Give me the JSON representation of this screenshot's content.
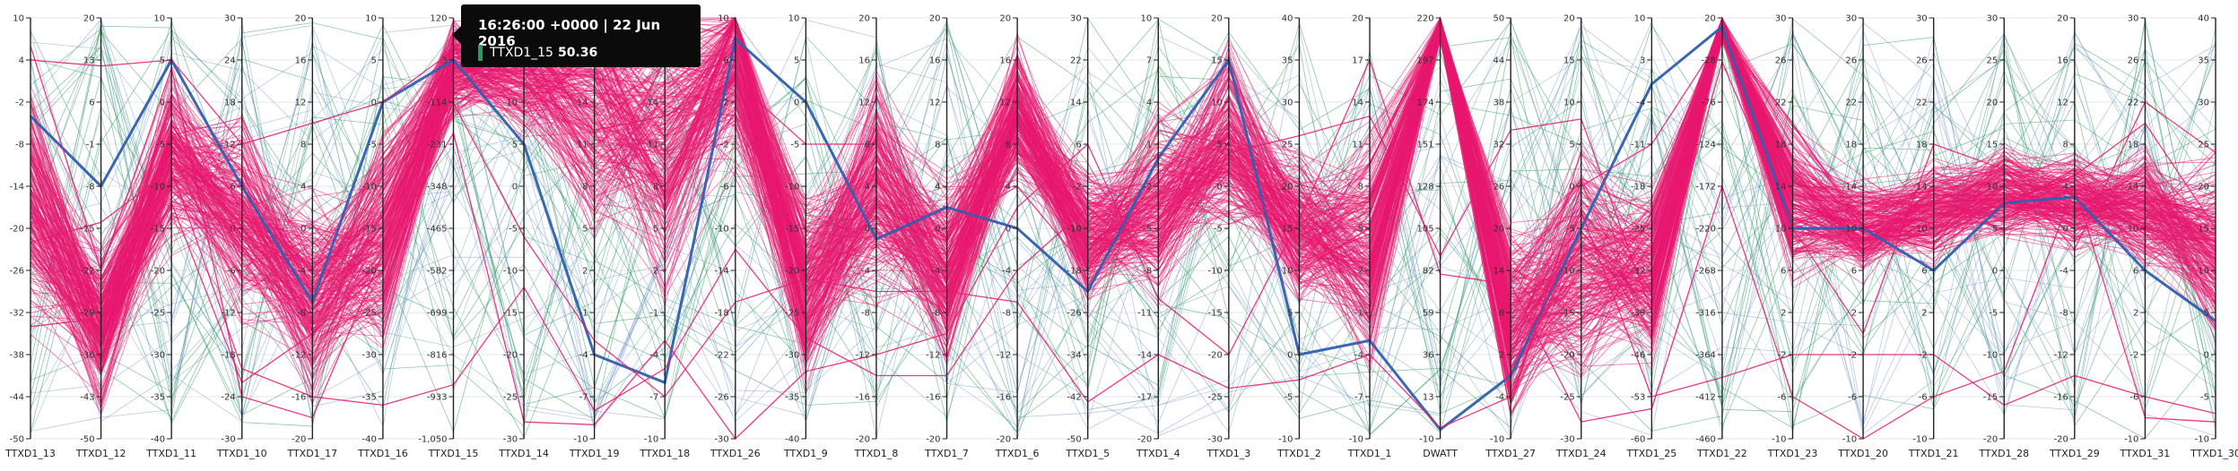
{
  "chart_data": {
    "type": "parallel-coordinates",
    "colors": {
      "highlight": "#2f5fb0",
      "primary": "#e8176f",
      "secondary": "#2e9b5e",
      "tertiary": "#7f9fd0"
    },
    "axes": [
      {
        "name": "TTXD1_13",
        "ticks": [
          "10",
          "4",
          "-2",
          "-8",
          "-14",
          "-20",
          "-26",
          "-32",
          "-38",
          "-44",
          "-50"
        ]
      },
      {
        "name": "TTXD1_12",
        "ticks": [
          "20",
          "13",
          "6",
          "-1",
          "-8",
          "-15",
          "-22",
          "-29",
          "-36",
          "-43",
          "-50"
        ]
      },
      {
        "name": "TTXD1_11",
        "ticks": [
          "10",
          "5",
          "0",
          "-5",
          "-10",
          "-15",
          "-20",
          "-25",
          "-30",
          "-35",
          "-40"
        ]
      },
      {
        "name": "TTXD1_10",
        "ticks": [
          "30",
          "24",
          "18",
          "12",
          "6",
          "0",
          "-6",
          "-12",
          "-18",
          "-24",
          "-30"
        ]
      },
      {
        "name": "TTXD1_17",
        "ticks": [
          "20",
          "16",
          "12",
          "8",
          "4",
          "0",
          "-4",
          "-8",
          "-12",
          "-16",
          "-20"
        ]
      },
      {
        "name": "TTXD1_16",
        "ticks": [
          "10",
          "5",
          "0",
          "-5",
          "-10",
          "-15",
          "-20",
          "-25",
          "-30",
          "-35",
          "-40"
        ]
      },
      {
        "name": "TTXD1_15",
        "ticks": [
          "120",
          "3",
          "-114",
          "-231",
          "-348",
          "-465",
          "-582",
          "-699",
          "-816",
          "-933",
          "-1,050"
        ]
      },
      {
        "name": "TTXD1_14",
        "ticks": [
          "20",
          "15",
          "10",
          "5",
          "0",
          "-5",
          "-10",
          "-15",
          "-20",
          "-25",
          "-30"
        ]
      },
      {
        "name": "TTXD1_19",
        "ticks": [
          "20",
          "17",
          "14",
          "11",
          "8",
          "5",
          "2",
          "-1",
          "-4",
          "-7",
          "-10"
        ]
      },
      {
        "name": "TTXD1_18",
        "ticks": [
          "20",
          "17",
          "14",
          "11",
          "8",
          "5",
          "2",
          "-1",
          "-4",
          "-7",
          "-10"
        ]
      },
      {
        "name": "TTXD1_26",
        "ticks": [
          "10",
          "6",
          "2",
          "-2",
          "-6",
          "-10",
          "-14",
          "-18",
          "-22",
          "-26",
          "-30"
        ]
      },
      {
        "name": "TTXD1_9",
        "ticks": [
          "10",
          "5",
          "0",
          "-5",
          "-10",
          "-15",
          "-20",
          "-25",
          "-30",
          "-35",
          "-40"
        ]
      },
      {
        "name": "TTXD1_8",
        "ticks": [
          "20",
          "16",
          "12",
          "8",
          "4",
          "0",
          "-4",
          "-8",
          "-12",
          "-16",
          "-20"
        ]
      },
      {
        "name": "TTXD1_7",
        "ticks": [
          "20",
          "16",
          "12",
          "8",
          "4",
          "0",
          "-4",
          "-8",
          "-12",
          "-16",
          "-20"
        ]
      },
      {
        "name": "TTXD1_6",
        "ticks": [
          "20",
          "16",
          "12",
          "8",
          "4",
          "0",
          "-4",
          "-8",
          "-12",
          "-16",
          "-20"
        ]
      },
      {
        "name": "TTXD1_5",
        "ticks": [
          "30",
          "22",
          "14",
          "6",
          "-2",
          "-10",
          "-18",
          "-26",
          "-34",
          "-42",
          "-50"
        ]
      },
      {
        "name": "TTXD1_4",
        "ticks": [
          "10",
          "7",
          "4",
          "1",
          "-2",
          "-5",
          "-8",
          "-11",
          "-14",
          "-17",
          "-20"
        ]
      },
      {
        "name": "TTXD1_3",
        "ticks": [
          "20",
          "15",
          "10",
          "5",
          "0",
          "-5",
          "-10",
          "-15",
          "-20",
          "-25",
          "-30"
        ]
      },
      {
        "name": "TTXD1_2",
        "ticks": [
          "40",
          "35",
          "30",
          "25",
          "20",
          "15",
          "10",
          "5",
          "0",
          "-5",
          "-10"
        ]
      },
      {
        "name": "TTXD1_1",
        "ticks": [
          "20",
          "17",
          "14",
          "11",
          "8",
          "5",
          "2",
          "-1",
          "-4",
          "-7",
          "-10"
        ]
      },
      {
        "name": "DWATT",
        "ticks": [
          "220",
          "197",
          "174",
          "151",
          "128",
          "105",
          "82",
          "59",
          "36",
          "13",
          "-10"
        ]
      },
      {
        "name": "TTXD1_27",
        "ticks": [
          "50",
          "44",
          "38",
          "32",
          "26",
          "20",
          "14",
          "8",
          "2",
          "-4",
          "-10"
        ]
      },
      {
        "name": "TTXD1_24",
        "ticks": [
          "20",
          "15",
          "10",
          "5",
          "0",
          "-5",
          "-10",
          "-15",
          "-20",
          "-25",
          "-30"
        ]
      },
      {
        "name": "TTXD1_25",
        "ticks": [
          "10",
          "3",
          "-4",
          "-11",
          "-18",
          "-25",
          "-32",
          "-39",
          "-46",
          "-53",
          "-60"
        ]
      },
      {
        "name": "TTXD1_22",
        "ticks": [
          "20",
          "-28",
          "-76",
          "-124",
          "-172",
          "-220",
          "-268",
          "-316",
          "-364",
          "-412",
          "-460"
        ]
      },
      {
        "name": "TTXD1_23",
        "ticks": [
          "30",
          "26",
          "22",
          "18",
          "14",
          "10",
          "6",
          "2",
          "-2",
          "-6",
          "-10"
        ]
      },
      {
        "name": "TTXD1_20",
        "ticks": [
          "30",
          "26",
          "22",
          "18",
          "14",
          "10",
          "6",
          "2",
          "-2",
          "-6",
          "-10"
        ]
      },
      {
        "name": "TTXD1_21",
        "ticks": [
          "30",
          "26",
          "22",
          "18",
          "14",
          "10",
          "6",
          "2",
          "-2",
          "-6",
          "-10"
        ]
      },
      {
        "name": "TTXD1_28",
        "ticks": [
          "30",
          "25",
          "20",
          "15",
          "10",
          "5",
          "0",
          "-5",
          "-10",
          "-15",
          "-20"
        ]
      },
      {
        "name": "TTXD1_29",
        "ticks": [
          "20",
          "16",
          "12",
          "8",
          "4",
          "0",
          "-4",
          "-8",
          "-12",
          "-16",
          "-20"
        ]
      },
      {
        "name": "TTXD1_31",
        "ticks": [
          "30",
          "26",
          "22",
          "18",
          "14",
          "10",
          "6",
          "2",
          "-2",
          "-6",
          "-10"
        ]
      },
      {
        "name": "TTXD1_30",
        "ticks": [
          "40",
          "35",
          "30",
          "25",
          "20",
          "15",
          "10",
          "5",
          "0",
          "-5",
          "-10"
        ]
      }
    ],
    "series": [
      {
        "values": [
          -4,
          -8,
          5,
          6,
          -7,
          0,
          3,
          5,
          -4,
          -6,
          8,
          0,
          -1,
          2,
          0,
          -22,
          0,
          15,
          0,
          -3,
          -5,
          -1,
          -5,
          -1,
          10,
          10,
          10,
          6,
          8,
          3,
          6,
          4
        ]
      },
      {
        "values": [
          4,
          12,
          5,
          12,
          10,
          0,
          30,
          12,
          12,
          13,
          4,
          -5,
          8,
          0,
          4,
          -18,
          2,
          5,
          10,
          5,
          210,
          -5,
          0,
          -11,
          0,
          20,
          10,
          8,
          8,
          5,
          20,
          15
        ]
      },
      {
        "values": [
          -34,
          -30,
          -12,
          -22,
          -10,
          -20,
          -116,
          -6,
          -3,
          -7,
          -17,
          -21,
          -6,
          -6,
          -7,
          -43,
          -14,
          -24,
          -3,
          -4,
          -4,
          -4,
          -3,
          -53,
          -390,
          -2,
          -2,
          -2,
          -16,
          -14,
          -6,
          -7
        ]
      },
      {
        "values": [
          -22,
          -14,
          -8,
          -20,
          -16,
          -36,
          -900,
          -12,
          -8,
          -5,
          -12,
          -28,
          -14,
          -14,
          -4,
          -6,
          -8,
          4,
          26,
          13,
          90,
          34,
          8,
          -39,
          -30,
          10,
          0,
          18,
          12,
          -2,
          22,
          24
        ]
      },
      {
        "values": [
          6,
          -22,
          4,
          -24,
          -18,
          -18,
          -200,
          -28,
          -9,
          -3,
          -30,
          -32,
          -12,
          -10,
          2,
          6,
          -10,
          -20,
          16,
          17,
          80,
          12,
          -28,
          -55,
          -172,
          -6,
          -10,
          -6,
          -12,
          4,
          -8,
          -8
        ]
      }
    ],
    "tooltip": {
      "time": "16:26:00 +0000",
      "date": "22 Jun 2016",
      "series": "TTXD1_15",
      "value": "50.36"
    }
  }
}
